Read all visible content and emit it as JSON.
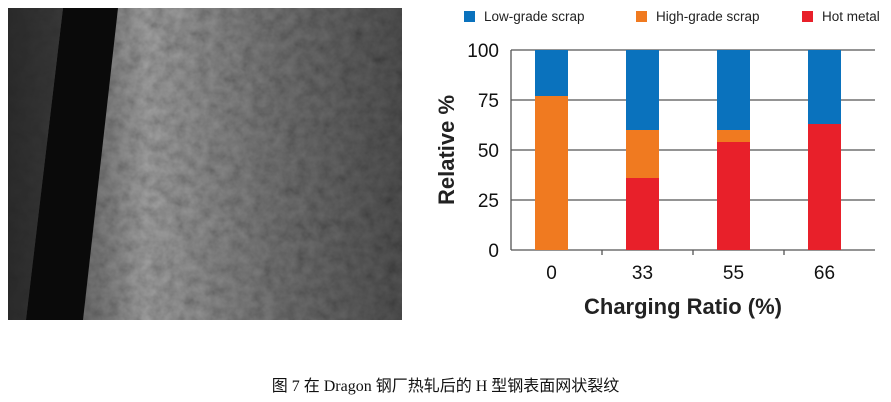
{
  "caption": "图 7  在 Dragon 钢厂热轧后的 H 型钢表面网状裂纹",
  "chart_data": {
    "type": "bar",
    "stacked": true,
    "title": "",
    "xlabel": "Charging Ratio (%)",
    "ylabel": "Relative %",
    "ylim": [
      0,
      100
    ],
    "yticks": [
      0,
      25,
      50,
      75,
      100
    ],
    "categories": [
      "0",
      "33",
      "55",
      "66"
    ],
    "grid": true,
    "legend_position": "top",
    "series": [
      {
        "name": "Hot metal",
        "color": "#e8202a",
        "values": [
          0,
          36,
          54,
          63
        ]
      },
      {
        "name": "High-grade scrap",
        "color": "#f07a20",
        "values": [
          77,
          24,
          6,
          0
        ]
      },
      {
        "name": "Low-grade scrap",
        "color": "#0a72bd",
        "values": [
          23,
          40,
          40,
          37
        ]
      }
    ],
    "legend_order": [
      "Low-grade scrap",
      "High-grade scrap",
      "Hot metal"
    ]
  }
}
